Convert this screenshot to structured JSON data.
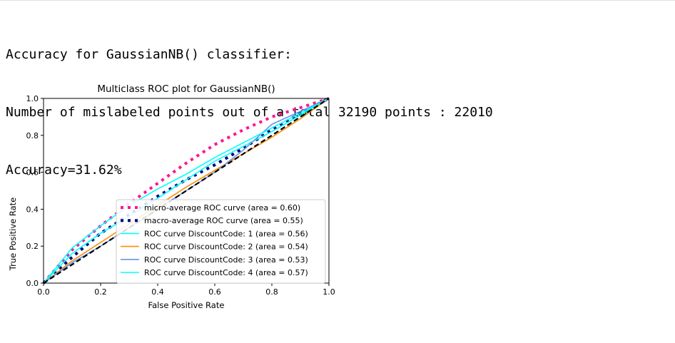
{
  "output": {
    "lines": [
      "Accuracy for GaussianNB() classifier:",
      "Number of mislabeled points out of a total 32190 points : 22010",
      "Accuracy=31.62%"
    ]
  },
  "chart_data": {
    "type": "line",
    "title": "Multiclass ROC plot for GaussianNB()",
    "xlabel": "False Positive Rate",
    "ylabel": "True Positive Rate",
    "xlim": [
      0.0,
      1.0
    ],
    "ylim": [
      0.0,
      1.0
    ],
    "xticks": [
      "0.0",
      "0.2",
      "0.4",
      "0.6",
      "0.8",
      "1.0"
    ],
    "yticks": [
      "0.0",
      "0.2",
      "0.4",
      "0.6",
      "0.8",
      "1.0"
    ],
    "grid": false,
    "legend_position": "lower-right",
    "series": [
      {
        "name": "micro-average ROC curve (area = 0.60)",
        "color": "#ff1493",
        "style": "dotted",
        "x": [
          0,
          0.1,
          0.2,
          0.3,
          0.4,
          0.5,
          0.6,
          0.7,
          0.8,
          0.9,
          1.0
        ],
        "y": [
          0,
          0.18,
          0.31,
          0.43,
          0.54,
          0.65,
          0.75,
          0.83,
          0.9,
          0.95,
          1.0
        ]
      },
      {
        "name": "macro-average ROC curve (area = 0.55)",
        "color": "#000080",
        "style": "dotted",
        "x": [
          0,
          0.1,
          0.2,
          0.3,
          0.4,
          0.5,
          0.6,
          0.7,
          0.8,
          0.9,
          1.0
        ],
        "y": [
          0,
          0.14,
          0.27,
          0.37,
          0.47,
          0.56,
          0.64,
          0.73,
          0.83,
          0.92,
          1.0
        ]
      },
      {
        "name": "ROC curve DiscountCode: 1 (area = 0.56)",
        "color": "#00ffff",
        "style": "solid",
        "x": [
          0,
          0.1,
          0.2,
          0.3,
          0.4,
          0.5,
          0.6,
          0.7,
          0.8,
          0.9,
          1.0
        ],
        "y": [
          0,
          0.16,
          0.27,
          0.36,
          0.46,
          0.56,
          0.66,
          0.74,
          0.82,
          0.91,
          1.0
        ]
      },
      {
        "name": "ROC curve DiscountCode: 2 (area = 0.54)",
        "color": "#ff8c00",
        "style": "solid",
        "x": [
          0,
          0.1,
          0.2,
          0.3,
          0.4,
          0.5,
          0.6,
          0.7,
          0.8,
          0.9,
          1.0
        ],
        "y": [
          0,
          0.12,
          0.22,
          0.32,
          0.42,
          0.52,
          0.61,
          0.7,
          0.79,
          0.89,
          1.0
        ]
      },
      {
        "name": "ROC curve DiscountCode: 3 (area = 0.53)",
        "color": "#6495ed",
        "style": "solid",
        "x": [
          0,
          0.1,
          0.2,
          0.3,
          0.4,
          0.5,
          0.6,
          0.7,
          0.8,
          0.9,
          1.0
        ],
        "y": [
          0,
          0.11,
          0.2,
          0.3,
          0.4,
          0.5,
          0.6,
          0.72,
          0.86,
          0.93,
          1.0
        ]
      },
      {
        "name": "ROC curve DiscountCode: 4 (area = 0.57)",
        "color": "#00ffff",
        "style": "solid",
        "x": [
          0,
          0.1,
          0.2,
          0.3,
          0.4,
          0.5,
          0.6,
          0.7,
          0.8,
          0.9,
          1.0
        ],
        "y": [
          0,
          0.19,
          0.31,
          0.42,
          0.51,
          0.59,
          0.68,
          0.76,
          0.84,
          0.92,
          1.0
        ]
      },
      {
        "name": "",
        "color": "#000000",
        "style": "dashed",
        "x": [
          0,
          1
        ],
        "y": [
          0,
          1
        ]
      }
    ]
  }
}
